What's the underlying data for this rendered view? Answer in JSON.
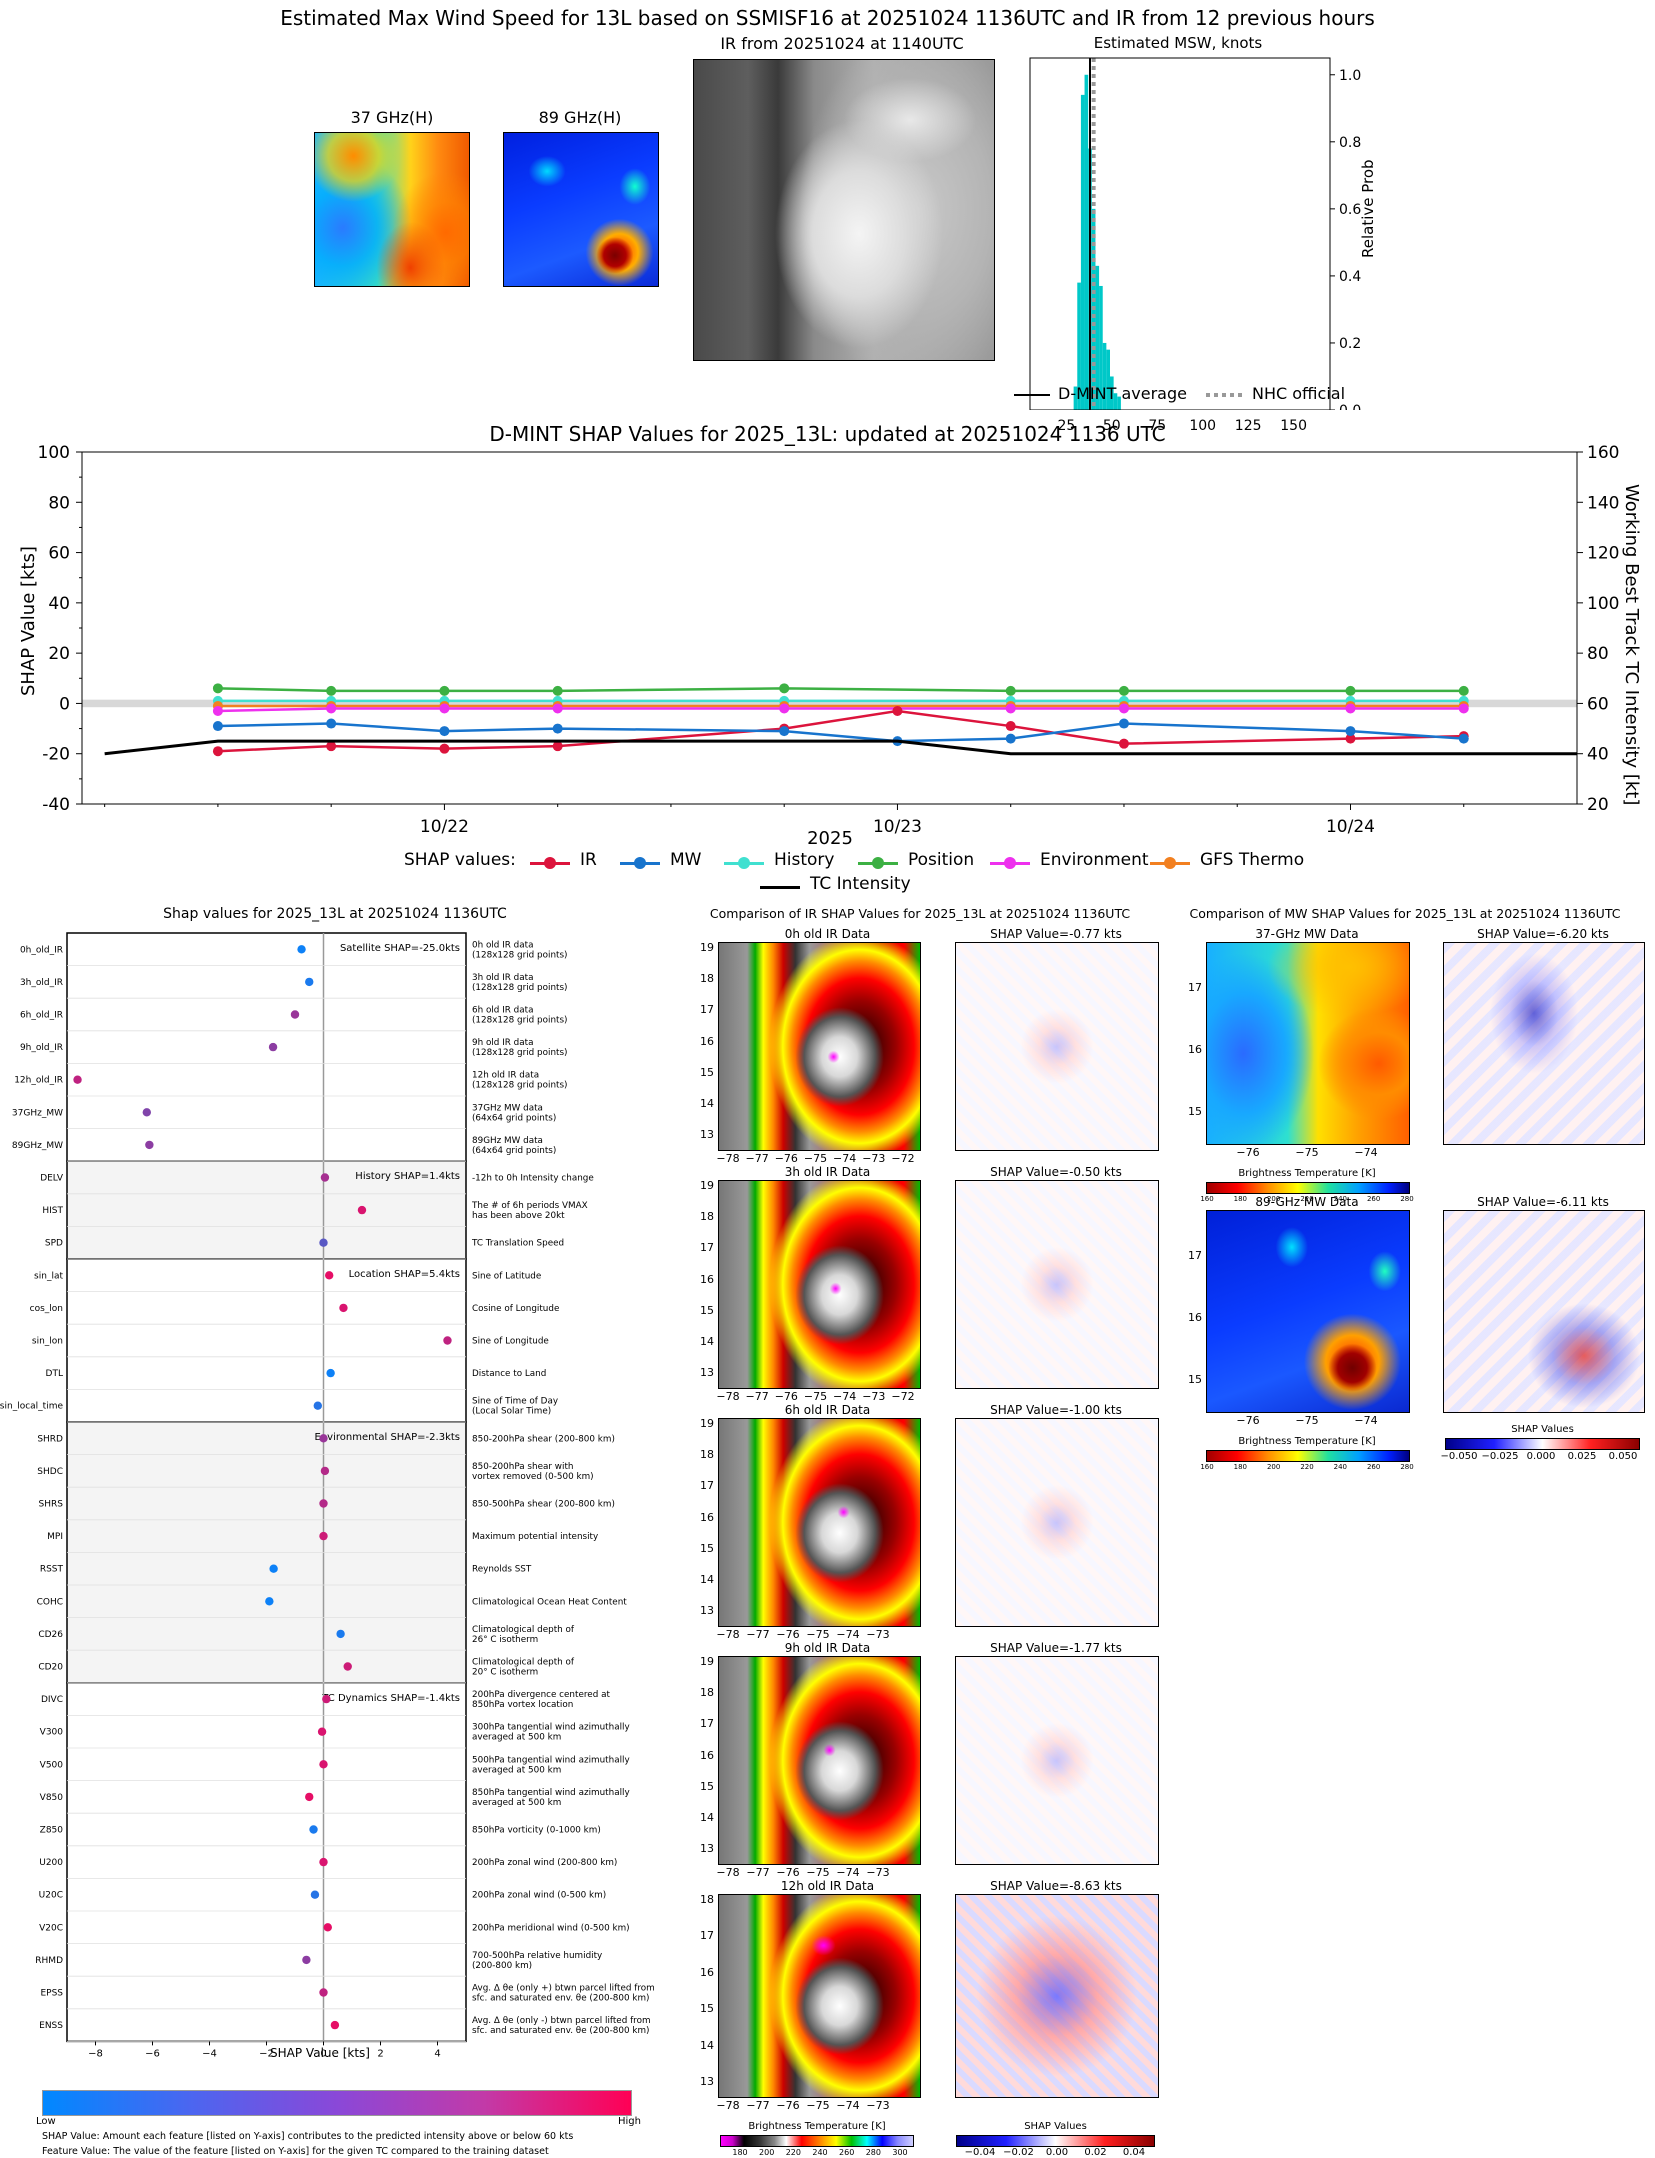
{
  "title": "Estimated Max Wind Speed for 13L based on SSMISF16 at 20251024 1136UTC and IR from 12 previous hours",
  "top_panels": {
    "mw37_title": "37 GHz(H)",
    "mw89_title": "89 GHz(H)",
    "ir_title": "IR from 20251024 at 1140UTC",
    "msw_title": "Estimated MSW, knots",
    "msw_ylabel": "Relative Prob",
    "msw_xticks": [
      "25",
      "50",
      "75",
      "100",
      "125",
      "150"
    ],
    "msw_yticks": [
      "0.0",
      "0.2",
      "0.4",
      "0.6",
      "0.8",
      "1.0"
    ],
    "legend_dmint": "D-MINT average",
    "legend_nhc": "NHC official",
    "dmint_avg": 38,
    "nhc_official": 40
  },
  "shap_ts": {
    "title": "D-MINT SHAP Values for 2025_13L: updated at 20251024 1136 UTC",
    "ylabel_left": "SHAP Value [kts]",
    "ylabel_right": "Working Best Track TC Intensity [kt]",
    "xlabel": "2025",
    "yticks_left": [
      "-40",
      "-20",
      "0",
      "20",
      "40",
      "60",
      "80",
      "100"
    ],
    "yticks_right": [
      "20",
      "40",
      "60",
      "80",
      "100",
      "120",
      "140",
      "160"
    ],
    "xticks": [
      "10/22",
      "10/23",
      "10/24"
    ],
    "legend_prefix": "SHAP values:",
    "legend": [
      "IR",
      "MW",
      "History",
      "Position",
      "Environment",
      "GFS Thermo",
      "TC Intensity"
    ],
    "colors": {
      "IR": "#dc143c",
      "MW": "#1874cd",
      "History": "#40e0d0",
      "Position": "#3cb043",
      "Environment": "#ee30ee",
      "GFS Thermo": "#f28020",
      "TC Intensity": "#000000"
    }
  },
  "bar_panel": {
    "title": "Shap values for 2025_13L at 20251024 1136UTC",
    "xlabel": "SHAP Value [kts]",
    "xticks": [
      "−8",
      "−6",
      "−4",
      "−2",
      "0",
      "2",
      "4"
    ],
    "group_labels": [
      "Satellite SHAP=-25.0kts",
      "History SHAP=1.4kts",
      "Location SHAP=5.4kts",
      "Environmental SHAP=-2.3kts",
      "TC Dynamics SHAP=-1.4kts"
    ],
    "cbar_low": "Low",
    "cbar_high": "High",
    "note1": "SHAP Value: Amount each feature [listed on Y-axis] contributes to the predicted intensity above or below 60 kts",
    "note2": "Feature Value: The value of the feature [listed on Y-axis] for the given TC compared to the training dataset",
    "features": [
      {
        "name": "0h_old_IR",
        "desc": "0h old IR data\n(128x128 grid points)"
      },
      {
        "name": "3h_old_IR",
        "desc": "3h old IR data\n(128x128 grid points)"
      },
      {
        "name": "6h_old_IR",
        "desc": "6h old IR data\n(128x128 grid points)"
      },
      {
        "name": "9h_old_IR",
        "desc": "9h old IR data\n(128x128 grid points)"
      },
      {
        "name": "12h_old_IR",
        "desc": "12h old IR data\n(128x128 grid points)"
      },
      {
        "name": "37GHz_MW",
        "desc": "37GHz MW data\n(64x64 grid points)"
      },
      {
        "name": "89GHz_MW",
        "desc": "89GHz MW data\n(64x64 grid points)"
      },
      {
        "name": "DELV",
        "desc": "-12h to 0h Intensity change"
      },
      {
        "name": "HIST",
        "desc": "The # of 6h periods VMAX\nhas been above 20kt"
      },
      {
        "name": "SPD",
        "desc": "TC Translation Speed"
      },
      {
        "name": "sin_lat",
        "desc": "Sine of Latitude"
      },
      {
        "name": "cos_lon",
        "desc": "Cosine of Longitude"
      },
      {
        "name": "sin_lon",
        "desc": "Sine of Longitude"
      },
      {
        "name": "DTL",
        "desc": "Distance to Land"
      },
      {
        "name": "sin_local_time",
        "desc": "Sine of Time of Day\n(Local Solar Time)"
      },
      {
        "name": "SHRD",
        "desc": "850-200hPa shear (200-800 km)"
      },
      {
        "name": "SHDC",
        "desc": "850-200hPa shear with\nvortex removed (0-500 km)"
      },
      {
        "name": "SHRS",
        "desc": "850-500hPa shear (200-800 km)"
      },
      {
        "name": "MPI",
        "desc": "Maximum potential intensity"
      },
      {
        "name": "RSST",
        "desc": "Reynolds SST"
      },
      {
        "name": "COHC",
        "desc": "Climatological Ocean Heat Content"
      },
      {
        "name": "CD26",
        "desc": "Climatological depth of\n26° C isotherm"
      },
      {
        "name": "CD20",
        "desc": "Climatological depth of\n20° C isotherm"
      },
      {
        "name": "DIVC",
        "desc": "200hPa divergence centered at\n850hPa vortex location"
      },
      {
        "name": "V300",
        "desc": "300hPa tangential wind azimuthally\naveraged at 500 km"
      },
      {
        "name": "V500",
        "desc": "500hPa tangential wind azimuthally\naveraged at 500 km"
      },
      {
        "name": "V850",
        "desc": "850hPa tangential wind azimuthally\naveraged at 500 km"
      },
      {
        "name": "Z850",
        "desc": "850hPa vorticity (0-1000 km)"
      },
      {
        "name": "U200",
        "desc": "200hPa zonal wind (200-800 km)"
      },
      {
        "name": "U20C",
        "desc": "200hPa zonal wind (0-500 km)"
      },
      {
        "name": "V20C",
        "desc": "200hPa meridional wind (0-500 km)"
      },
      {
        "name": "RHMD",
        "desc": "700-500hPa relative humidity\n(200-800 km)"
      },
      {
        "name": "EPSS",
        "desc": "Avg. Δ θe (only +) btwn parcel lifted from\nsfc. and saturated env. θe (200-800 km)"
      },
      {
        "name": "ENSS",
        "desc": "Avg. Δ θe (only -) btwn parcel lifted from\nsfc. and saturated env. θe (200-800 km)"
      }
    ]
  },
  "ir_compare": {
    "title": "Comparison of IR SHAP Values for 2025_13L at 20251024 1136UTC",
    "rows": [
      {
        "left": "0h old IR Data",
        "right": "SHAP Value=-0.77 kts",
        "xticks": [
          "−78",
          "−77",
          "−76",
          "−75",
          "−74",
          "−73",
          "−72"
        ],
        "yticks": [
          "13",
          "14",
          "15",
          "16",
          "17",
          "18",
          "19"
        ]
      },
      {
        "left": "3h old IR Data",
        "right": "SHAP Value=-0.50 kts",
        "xticks": [
          "−78",
          "−77",
          "−76",
          "−75",
          "−74",
          "−73",
          "−72"
        ],
        "yticks": [
          "13",
          "14",
          "15",
          "16",
          "17",
          "18",
          "19"
        ]
      },
      {
        "left": "6h old IR Data",
        "right": "SHAP Value=-1.00 kts",
        "xticks": [
          "−78",
          "−77",
          "−76",
          "−75",
          "−74",
          "−73"
        ],
        "yticks": [
          "13",
          "14",
          "15",
          "16",
          "17",
          "18",
          "19"
        ]
      },
      {
        "left": "9h old IR Data",
        "right": "SHAP Value=-1.77 kts",
        "xticks": [
          "−78",
          "−77",
          "−76",
          "−75",
          "−74",
          "−73"
        ],
        "yticks": [
          "13",
          "14",
          "15",
          "16",
          "17",
          "18",
          "19"
        ]
      },
      {
        "left": "12h old IR Data",
        "right": "SHAP Value=-8.63 kts",
        "xticks": [
          "−78",
          "−77",
          "−76",
          "−75",
          "−74",
          "−73"
        ],
        "yticks": [
          "13",
          "14",
          "15",
          "16",
          "17",
          "18"
        ]
      }
    ],
    "cbar_bt_label": "Brightness Temperature [K]",
    "cbar_bt_ticks": [
      "180",
      "200",
      "220",
      "240",
      "260",
      "280",
      "300"
    ],
    "cbar_shap_label": "SHAP Values",
    "cbar_shap_ticks": [
      "−0.04",
      "−0.02",
      "0.00",
      "0.02",
      "0.04"
    ]
  },
  "mw_compare": {
    "title": "Comparison of MW SHAP Values for 2025_13L at 20251024 1136UTC",
    "rows": [
      {
        "left": "37-GHz MW Data",
        "right": "SHAP Value=-6.20 kts"
      },
      {
        "left": "89-GHz MW Data",
        "right": "SHAP Value=-6.11 kts"
      }
    ],
    "xticks": [
      "−76",
      "−75",
      "−74"
    ],
    "yticks": [
      "15",
      "16",
      "17"
    ],
    "cbar_bt_label": "Brightness Temperature [K]",
    "cbar_bt_ticks": [
      "160",
      "180",
      "200",
      "220",
      "240",
      "260",
      "280"
    ],
    "cbar_shap_label": "SHAP Values",
    "cbar_shap_ticks": [
      "−0.050",
      "−0.025",
      "0.000",
      "0.025",
      "0.050"
    ]
  },
  "chart_data": [
    {
      "type": "bar",
      "title": "Estimated MSW, knots",
      "ylabel": "Relative Prob",
      "xlim": [
        5,
        170
      ],
      "ylim": [
        0,
        1.05
      ],
      "bin_width": 2,
      "bins_x": [
        30,
        32,
        34,
        36,
        38,
        40,
        42,
        44,
        46,
        48,
        50,
        52,
        54
      ],
      "values": [
        0.07,
        0.38,
        0.94,
        1.0,
        0.78,
        0.6,
        0.43,
        0.37,
        0.2,
        0.18,
        0.1,
        0.05,
        0.04
      ],
      "lines": {
        "D-MINT average": 38,
        "NHC official": 40
      }
    },
    {
      "type": "line",
      "title": "D-MINT SHAP Values for 2025_13L: updated at 20251024 1136 UTC",
      "xlabel": "2025",
      "ylabel": "SHAP Value [kts]",
      "ylim": [
        -40,
        100
      ],
      "y2label": "Working Best Track TC Intensity [kt]",
      "y2lim": [
        20,
        160
      ],
      "x_units": "days from 2025-10-21 00UTC",
      "xlim": [
        21.2,
        24.5
      ],
      "series": [
        {
          "name": "Position",
          "x": [
            21.5,
            21.75,
            22.0,
            22.25,
            22.75,
            23.25,
            23.5,
            24.0,
            24.25
          ],
          "values": [
            6,
            5,
            5,
            5,
            6,
            5,
            5,
            5,
            5
          ]
        },
        {
          "name": "History",
          "x": [
            21.5,
            21.75,
            22.0,
            22.25,
            22.75,
            23.25,
            23.5,
            24.0,
            24.25
          ],
          "values": [
            1,
            1,
            1,
            1,
            1,
            1,
            1,
            1,
            1
          ]
        },
        {
          "name": "GFS Thermo",
          "x": [
            21.5,
            21.75,
            22.0,
            22.25,
            22.75,
            23.25,
            23.5,
            24.0,
            24.25
          ],
          "values": [
            -1,
            -1,
            -1,
            -1,
            -1,
            -1,
            -1,
            -1,
            -1
          ]
        },
        {
          "name": "Environment",
          "x": [
            21.5,
            21.75,
            22.0,
            22.25,
            22.75,
            23.25,
            23.5,
            24.0,
            24.25
          ],
          "values": [
            -3,
            -2,
            -2,
            -2,
            -2,
            -2,
            -2,
            -2,
            -2
          ]
        },
        {
          "name": "IR",
          "x": [
            21.5,
            21.75,
            22.0,
            22.25,
            22.75,
            23.0,
            23.25,
            23.5,
            24.0,
            24.25
          ],
          "values": [
            -19,
            -17,
            -18,
            -17,
            -10,
            -3,
            -9,
            -16,
            -14,
            -13
          ]
        },
        {
          "name": "MW",
          "x": [
            21.5,
            21.75,
            22.0,
            22.25,
            22.75,
            23.0,
            23.25,
            23.5,
            24.0,
            24.25
          ],
          "values": [
            -9,
            -8,
            -11,
            -10,
            -11,
            -15,
            -14,
            -8,
            -11,
            -14
          ]
        },
        {
          "name": "TC Intensity",
          "x": [
            21.25,
            21.5,
            22.0,
            22.5,
            23.0,
            23.25,
            23.5,
            24.0,
            24.5
          ],
          "values": [
            40,
            45,
            45,
            45,
            45,
            40,
            40,
            40,
            40
          ],
          "axis": "right"
        }
      ]
    },
    {
      "type": "scatter",
      "title": "Shap values for 2025_13L at 20251024 1136UTC",
      "xlabel": "SHAP Value [kts]",
      "xlim": [
        -9,
        5
      ],
      "categories": [
        "0h_old_IR",
        "3h_old_IR",
        "6h_old_IR",
        "9h_old_IR",
        "12h_old_IR",
        "37GHz_MW",
        "89GHz_MW",
        "DELV",
        "HIST",
        "SPD",
        "sin_lat",
        "cos_lon",
        "sin_lon",
        "DTL",
        "sin_local_time",
        "SHRD",
        "SHDC",
        "SHRS",
        "MPI",
        "RSST",
        "COHC",
        "CD26",
        "CD20",
        "DIVC",
        "V300",
        "V500",
        "V850",
        "Z850",
        "U200",
        "U20C",
        "V20C",
        "RHMD",
        "EPSS",
        "ENSS"
      ],
      "values": [
        -0.77,
        -0.5,
        -1.0,
        -1.77,
        -8.63,
        -6.2,
        -6.11,
        0.05,
        1.35,
        0.0,
        0.2,
        0.7,
        4.35,
        0.25,
        -0.2,
        0.0,
        0.05,
        0.0,
        0.0,
        -1.75,
        -1.9,
        0.6,
        0.85,
        0.1,
        -0.05,
        0.0,
        -0.5,
        -0.35,
        0.0,
        -0.3,
        0.15,
        -0.6,
        0.0,
        0.4
      ],
      "feature_values": [
        0.05,
        0.1,
        0.6,
        0.55,
        0.75,
        0.5,
        0.55,
        0.65,
        0.85,
        0.35,
        0.9,
        0.85,
        0.75,
        0.05,
        0.15,
        0.6,
        0.7,
        0.7,
        0.8,
        0.05,
        0.05,
        0.1,
        0.8,
        0.8,
        0.85,
        0.85,
        0.9,
        0.1,
        0.85,
        0.15,
        0.9,
        0.55,
        0.75,
        0.9
      ]
    }
  ]
}
